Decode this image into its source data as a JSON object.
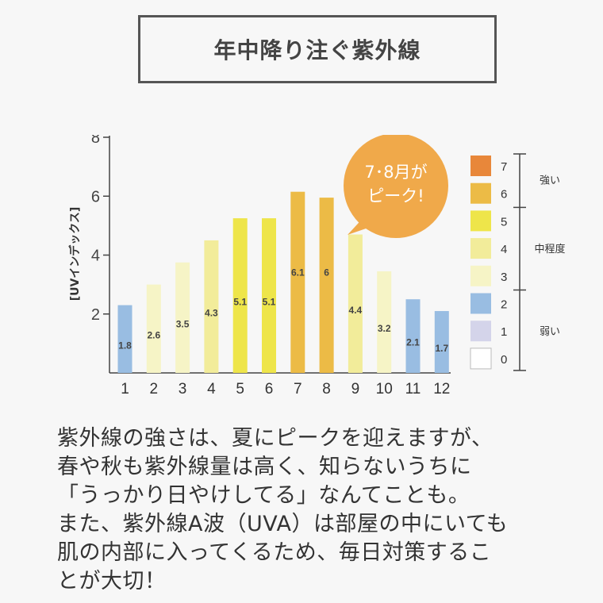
{
  "title": "年中降り注ぐ紫外線",
  "chart_data": {
    "type": "bar",
    "ylabel": "[UVインデックス]",
    "ylim": [
      0,
      8
    ],
    "yticks": [
      2,
      4,
      6,
      8
    ],
    "categories": [
      "1",
      "2",
      "3",
      "4",
      "5",
      "6",
      "7",
      "8",
      "9",
      "10",
      "11",
      "12"
    ],
    "values": [
      1.8,
      2.6,
      3.5,
      4.3,
      5.1,
      5.1,
      6.1,
      6.0,
      4.4,
      3.2,
      2.1,
      1.7
    ],
    "bar_heights": [
      2.3,
      3.0,
      3.75,
      4.5,
      5.25,
      5.25,
      6.15,
      5.95,
      4.7,
      3.45,
      2.5,
      2.1
    ],
    "bar_levels": [
      2,
      3,
      3,
      4,
      5,
      5,
      6,
      6,
      4,
      3,
      2,
      2
    ],
    "callout": [
      "7･8月が",
      "ピーク!"
    ],
    "callout_color": "#f0a94a",
    "legend": {
      "levels": [
        {
          "label": "7",
          "color": "#e8873a"
        },
        {
          "label": "6",
          "color": "#ecbb46"
        },
        {
          "label": "5",
          "color": "#eee54a"
        },
        {
          "label": "4",
          "color": "#f2ec9a"
        },
        {
          "label": "3",
          "color": "#f6f4c6"
        },
        {
          "label": "2",
          "color": "#99bde2"
        },
        {
          "label": "1",
          "color": "#d4d4ea"
        },
        {
          "label": "0",
          "color": "#ffffff"
        }
      ],
      "groups": [
        {
          "label": "強い",
          "from": 0,
          "to": 1
        },
        {
          "label": "中程度",
          "from": 2,
          "to": 4
        },
        {
          "label": "弱い",
          "from": 5,
          "to": 7
        }
      ]
    }
  },
  "description": "紫外線の強さは、夏にピークを迎えますが、\n春や秋も紫外線量は高く、知らないうちに\n「うっかり日やけしてる」なんてことも。\nまた、紫外線A波（UVA）は部屋の中にいても\n肌の内部に入ってくるため、毎日対策するこ\nとが大切！"
}
